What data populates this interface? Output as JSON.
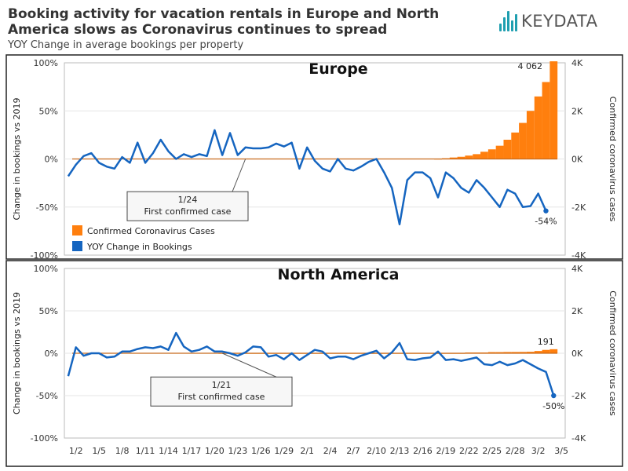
{
  "header": {
    "title": "Booking activity for vacation rentals in Europe and North America slows as Coronavirus continues to spread",
    "subtitle": "YOY Change in average bookings per property"
  },
  "logo": {
    "text": "KEYDATA",
    "icon": "bar-chart-logo-icon",
    "color": "#1f9fb0"
  },
  "colors": {
    "cases": "#ff7f0e",
    "bookings": "#1565c0",
    "zero_line": "#c76b1c"
  },
  "chart_data": [
    {
      "type": "bar+line",
      "title": "Europe",
      "ylabel": "Change in bookings vs 2019",
      "y2label": "Confirmed coronavirus cases",
      "ylim": [
        -100,
        100
      ],
      "y2lim": [
        -4000,
        4000
      ],
      "y_ticks": [
        "100%",
        "50%",
        "0%",
        "-50%",
        "-100%"
      ],
      "y2_ticks": [
        "4K",
        "2K",
        "0K",
        "-2K",
        "-4K"
      ],
      "legend": [
        "Confirmed Coronavirus Cases",
        "YOY Change in Bookings"
      ],
      "legend_position": "bottom-left",
      "first_case_day": 24,
      "annotation": {
        "date": "1/24",
        "text": "First confirmed case"
      },
      "last_cases_label": "4 062",
      "last_bookings_label": "-54%",
      "cases": [
        {
          "day": 49,
          "v": 10
        },
        {
          "day": 50,
          "v": 30
        },
        {
          "day": 51,
          "v": 60
        },
        {
          "day": 52,
          "v": 90
        },
        {
          "day": 53,
          "v": 140
        },
        {
          "day": 54,
          "v": 200
        },
        {
          "day": 55,
          "v": 300
        },
        {
          "day": 56,
          "v": 400
        },
        {
          "day": 57,
          "v": 550
        },
        {
          "day": 58,
          "v": 800
        },
        {
          "day": 59,
          "v": 1100
        },
        {
          "day": 60,
          "v": 1500
        },
        {
          "day": 61,
          "v": 2000
        },
        {
          "day": 62,
          "v": 2600
        },
        {
          "day": 63,
          "v": 3200
        },
        {
          "day": 64,
          "v": 4062
        }
      ],
      "bookings": [
        {
          "day": 1,
          "v": -18
        },
        {
          "day": 2,
          "v": -6
        },
        {
          "day": 3,
          "v": 3
        },
        {
          "day": 4,
          "v": 6
        },
        {
          "day": 5,
          "v": -4
        },
        {
          "day": 6,
          "v": -8
        },
        {
          "day": 7,
          "v": -10
        },
        {
          "day": 8,
          "v": 2
        },
        {
          "day": 9,
          "v": -4
        },
        {
          "day": 10,
          "v": 17
        },
        {
          "day": 11,
          "v": -4
        },
        {
          "day": 12,
          "v": 6
        },
        {
          "day": 13,
          "v": 20
        },
        {
          "day": 14,
          "v": 8
        },
        {
          "day": 15,
          "v": 0
        },
        {
          "day": 16,
          "v": 5
        },
        {
          "day": 17,
          "v": 2
        },
        {
          "day": 18,
          "v": 5
        },
        {
          "day": 19,
          "v": 3
        },
        {
          "day": 20,
          "v": 30
        },
        {
          "day": 21,
          "v": 4
        },
        {
          "day": 22,
          "v": 27
        },
        {
          "day": 23,
          "v": 4
        },
        {
          "day": 24,
          "v": 12
        },
        {
          "day": 25,
          "v": 11
        },
        {
          "day": 26,
          "v": 11
        },
        {
          "day": 27,
          "v": 12
        },
        {
          "day": 28,
          "v": 16
        },
        {
          "day": 29,
          "v": 13
        },
        {
          "day": 30,
          "v": 17
        },
        {
          "day": 31,
          "v": -10
        },
        {
          "day": 32,
          "v": 12
        },
        {
          "day": 33,
          "v": -2
        },
        {
          "day": 34,
          "v": -10
        },
        {
          "day": 35,
          "v": -13
        },
        {
          "day": 36,
          "v": 0
        },
        {
          "day": 37,
          "v": -10
        },
        {
          "day": 38,
          "v": -12
        },
        {
          "day": 39,
          "v": -8
        },
        {
          "day": 40,
          "v": -3
        },
        {
          "day": 41,
          "v": 0
        },
        {
          "day": 42,
          "v": -14
        },
        {
          "day": 43,
          "v": -30
        },
        {
          "day": 44,
          "v": -68
        },
        {
          "day": 45,
          "v": -22
        },
        {
          "day": 46,
          "v": -14
        },
        {
          "day": 47,
          "v": -14
        },
        {
          "day": 48,
          "v": -20
        },
        {
          "day": 49,
          "v": -40
        },
        {
          "day": 50,
          "v": -14
        },
        {
          "day": 51,
          "v": -20
        },
        {
          "day": 52,
          "v": -30
        },
        {
          "day": 53,
          "v": -35
        },
        {
          "day": 54,
          "v": -22
        },
        {
          "day": 55,
          "v": -30
        },
        {
          "day": 56,
          "v": -40
        },
        {
          "day": 57,
          "v": -50
        },
        {
          "day": 58,
          "v": -32
        },
        {
          "day": 59,
          "v": -36
        },
        {
          "day": 60,
          "v": -50
        },
        {
          "day": 61,
          "v": -49
        },
        {
          "day": 62,
          "v": -36
        },
        {
          "day": 63,
          "v": -54
        }
      ]
    },
    {
      "type": "bar+line",
      "title": "North America",
      "ylabel": "Change in bookings vs 2019",
      "y2label": "Confirmed coronavirus cases",
      "ylim": [
        -100,
        100
      ],
      "y2lim": [
        -4000,
        4000
      ],
      "y_ticks": [
        "100%",
        "50%",
        "0%",
        "-50%",
        "-100%"
      ],
      "y2_ticks": [
        "4K",
        "2K",
        "0K",
        "-2K",
        "-4K"
      ],
      "first_case_day": 21,
      "annotation": {
        "date": "1/21",
        "text": "First confirmed case"
      },
      "last_cases_label": "191",
      "last_bookings_label": "-50%",
      "cases": [
        {
          "day": 21,
          "v": 1
        },
        {
          "day": 22,
          "v": 1
        },
        {
          "day": 23,
          "v": 1
        },
        {
          "day": 24,
          "v": 2
        },
        {
          "day": 25,
          "v": 2
        },
        {
          "day": 26,
          "v": 5
        },
        {
          "day": 27,
          "v": 5
        },
        {
          "day": 28,
          "v": 5
        },
        {
          "day": 29,
          "v": 5
        },
        {
          "day": 30,
          "v": 6
        },
        {
          "day": 31,
          "v": 7
        },
        {
          "day": 32,
          "v": 8
        },
        {
          "day": 33,
          "v": 11
        },
        {
          "day": 34,
          "v": 11
        },
        {
          "day": 35,
          "v": 11
        },
        {
          "day": 36,
          "v": 12
        },
        {
          "day": 37,
          "v": 12
        },
        {
          "day": 38,
          "v": 12
        },
        {
          "day": 39,
          "v": 12
        },
        {
          "day": 40,
          "v": 12
        },
        {
          "day": 41,
          "v": 13
        },
        {
          "day": 42,
          "v": 13
        },
        {
          "day": 43,
          "v": 14
        },
        {
          "day": 44,
          "v": 15
        },
        {
          "day": 45,
          "v": 15
        },
        {
          "day": 46,
          "v": 15
        },
        {
          "day": 47,
          "v": 15
        },
        {
          "day": 48,
          "v": 15
        },
        {
          "day": 49,
          "v": 15
        },
        {
          "day": 50,
          "v": 15
        },
        {
          "day": 51,
          "v": 15
        },
        {
          "day": 52,
          "v": 15
        },
        {
          "day": 53,
          "v": 35
        },
        {
          "day": 54,
          "v": 35
        },
        {
          "day": 55,
          "v": 35
        },
        {
          "day": 56,
          "v": 53
        },
        {
          "day": 57,
          "v": 53
        },
        {
          "day": 58,
          "v": 59
        },
        {
          "day": 59,
          "v": 60
        },
        {
          "day": 60,
          "v": 62
        },
        {
          "day": 61,
          "v": 70
        },
        {
          "day": 62,
          "v": 106
        },
        {
          "day": 63,
          "v": 158
        },
        {
          "day": 64,
          "v": 191
        }
      ],
      "bookings": [
        {
          "day": 1,
          "v": -27
        },
        {
          "day": 2,
          "v": 7
        },
        {
          "day": 3,
          "v": -3
        },
        {
          "day": 4,
          "v": 0
        },
        {
          "day": 5,
          "v": 0
        },
        {
          "day": 6,
          "v": -5
        },
        {
          "day": 7,
          "v": -4
        },
        {
          "day": 8,
          "v": 2
        },
        {
          "day": 9,
          "v": 2
        },
        {
          "day": 10,
          "v": 5
        },
        {
          "day": 11,
          "v": 7
        },
        {
          "day": 12,
          "v": 6
        },
        {
          "day": 13,
          "v": 8
        },
        {
          "day": 14,
          "v": 4
        },
        {
          "day": 15,
          "v": 24
        },
        {
          "day": 16,
          "v": 8
        },
        {
          "day": 17,
          "v": 2
        },
        {
          "day": 18,
          "v": 4
        },
        {
          "day": 19,
          "v": 8
        },
        {
          "day": 20,
          "v": 2
        },
        {
          "day": 21,
          "v": 2
        },
        {
          "day": 22,
          "v": 0
        },
        {
          "day": 23,
          "v": -3
        },
        {
          "day": 24,
          "v": 1
        },
        {
          "day": 25,
          "v": 8
        },
        {
          "day": 26,
          "v": 7
        },
        {
          "day": 27,
          "v": -4
        },
        {
          "day": 28,
          "v": -2
        },
        {
          "day": 29,
          "v": -7
        },
        {
          "day": 30,
          "v": 0
        },
        {
          "day": 31,
          "v": -8
        },
        {
          "day": 32,
          "v": -2
        },
        {
          "day": 33,
          "v": 4
        },
        {
          "day": 34,
          "v": 2
        },
        {
          "day": 35,
          "v": -6
        },
        {
          "day": 36,
          "v": -4
        },
        {
          "day": 37,
          "v": -4
        },
        {
          "day": 38,
          "v": -7
        },
        {
          "day": 39,
          "v": -3
        },
        {
          "day": 40,
          "v": 0
        },
        {
          "day": 41,
          "v": 3
        },
        {
          "day": 42,
          "v": -6
        },
        {
          "day": 43,
          "v": 1
        },
        {
          "day": 44,
          "v": 12
        },
        {
          "day": 45,
          "v": -7
        },
        {
          "day": 46,
          "v": -8
        },
        {
          "day": 47,
          "v": -6
        },
        {
          "day": 48,
          "v": -5
        },
        {
          "day": 49,
          "v": 2
        },
        {
          "day": 50,
          "v": -8
        },
        {
          "day": 51,
          "v": -7
        },
        {
          "day": 52,
          "v": -9
        },
        {
          "day": 53,
          "v": -7
        },
        {
          "day": 54,
          "v": -5
        },
        {
          "day": 55,
          "v": -13
        },
        {
          "day": 56,
          "v": -14
        },
        {
          "day": 57,
          "v": -10
        },
        {
          "day": 58,
          "v": -14
        },
        {
          "day": 59,
          "v": -12
        },
        {
          "day": 60,
          "v": -8
        },
        {
          "day": 61,
          "v": -13
        },
        {
          "day": 62,
          "v": -18
        },
        {
          "day": 63,
          "v": -22
        },
        {
          "day": 64,
          "v": -50
        }
      ]
    }
  ],
  "x_axis": {
    "day_min": 1,
    "day_max": 65,
    "ticks": [
      {
        "label": "1/2",
        "day": 2
      },
      {
        "label": "1/5",
        "day": 5
      },
      {
        "label": "1/8",
        "day": 8
      },
      {
        "label": "1/11",
        "day": 11
      },
      {
        "label": "1/14",
        "day": 14
      },
      {
        "label": "1/17",
        "day": 17
      },
      {
        "label": "1/20",
        "day": 20
      },
      {
        "label": "1/23",
        "day": 23
      },
      {
        "label": "1/26",
        "day": 26
      },
      {
        "label": "1/29",
        "day": 29
      },
      {
        "label": "2/1",
        "day": 32
      },
      {
        "label": "2/4",
        "day": 35
      },
      {
        "label": "2/7",
        "day": 38
      },
      {
        "label": "2/10",
        "day": 41
      },
      {
        "label": "2/13",
        "day": 44
      },
      {
        "label": "2/16",
        "day": 47
      },
      {
        "label": "2/19",
        "day": 50
      },
      {
        "label": "2/22",
        "day": 53
      },
      {
        "label": "2/25",
        "day": 56
      },
      {
        "label": "2/28",
        "day": 59
      },
      {
        "label": "3/2",
        "day": 62
      },
      {
        "label": "3/5",
        "day": 65
      }
    ]
  }
}
